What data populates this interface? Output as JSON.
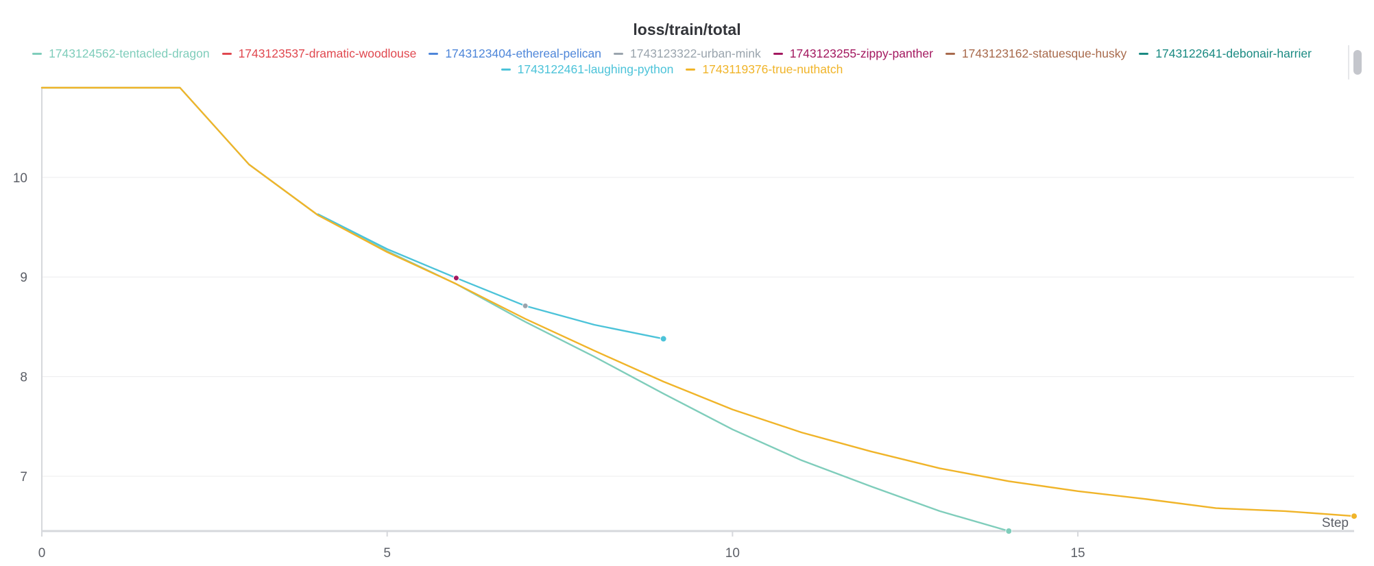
{
  "chart_data": {
    "type": "line",
    "title": "loss/train/total",
    "xlabel": "Step",
    "ylabel": "",
    "xlim": [
      0,
      19
    ],
    "ylim": [
      6.45,
      10.9
    ],
    "x_ticks": [
      0,
      5,
      10,
      15
    ],
    "y_ticks": [
      7,
      8,
      9,
      10
    ],
    "grid": true,
    "legend_position": "top",
    "series": [
      {
        "name": "1743124562-tentacled-dragon",
        "color": "#7fcdbb",
        "points": [
          [
            0,
            10.9
          ],
          [
            1,
            10.9
          ],
          [
            2,
            10.9
          ],
          [
            3,
            10.13
          ],
          [
            4,
            9.62
          ],
          [
            5,
            9.26
          ],
          [
            6,
            8.93
          ],
          [
            7,
            8.55
          ],
          [
            8,
            8.2
          ],
          [
            9,
            7.83
          ],
          [
            10,
            7.47
          ],
          [
            11,
            7.16
          ],
          [
            12,
            6.9
          ],
          [
            13,
            6.65
          ],
          [
            14,
            6.45
          ]
        ]
      },
      {
        "name": "1743123537-dramatic-woodlouse",
        "color": "#e0484f",
        "points": []
      },
      {
        "name": "1743123404-ethereal-pelican",
        "color": "#4e86d9",
        "points": []
      },
      {
        "name": "1743123322-urban-mink",
        "color": "#9aa4ad",
        "points": [
          [
            7,
            8.71
          ]
        ]
      },
      {
        "name": "1743123255-zippy-panther",
        "color": "#a3185f",
        "points": [
          [
            6,
            8.99
          ]
        ]
      },
      {
        "name": "1743123162-statuesque-husky",
        "color": "#a86a4c",
        "points": []
      },
      {
        "name": "1743122641-debonair-harrier",
        "color": "#1a8a82",
        "points": []
      },
      {
        "name": "1743122461-laughing-python",
        "color": "#4cc3d9",
        "points": [
          [
            4,
            9.63
          ],
          [
            5,
            9.28
          ],
          [
            6,
            8.99
          ],
          [
            7,
            8.71
          ],
          [
            8,
            8.52
          ],
          [
            9,
            8.38
          ]
        ]
      },
      {
        "name": "1743119376-true-nuthatch",
        "color": "#f0b429",
        "points": [
          [
            0,
            10.9
          ],
          [
            1,
            10.9
          ],
          [
            2,
            10.9
          ],
          [
            3,
            10.13
          ],
          [
            4,
            9.62
          ],
          [
            5,
            9.25
          ],
          [
            6,
            8.93
          ],
          [
            7,
            8.58
          ],
          [
            8,
            8.26
          ],
          [
            9,
            7.95
          ],
          [
            10,
            7.67
          ],
          [
            11,
            7.44
          ],
          [
            12,
            7.25
          ],
          [
            13,
            7.08
          ],
          [
            14,
            6.95
          ],
          [
            15,
            6.85
          ],
          [
            16,
            6.77
          ],
          [
            17,
            6.68
          ],
          [
            18,
            6.65
          ],
          [
            19,
            6.6
          ]
        ]
      }
    ]
  }
}
